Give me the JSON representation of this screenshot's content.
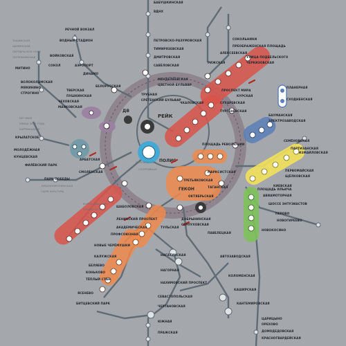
{
  "colors": {
    "background": "#a4a7ab",
    "line": "#5f6b75",
    "ring_fill": "#8c7f89",
    "ring_stroke": "#6e5e6a",
    "zone_red": "#d9544a",
    "zone_orange": "#ef8a4c",
    "zone_blue": "#5b7fb9",
    "zone_purple": "#9b7fa3",
    "zone_yellow": "#f2e15b",
    "zone_green": "#7ec25a",
    "zone_cyan": "#3fa9d6",
    "zone_teal": "#6f9aa6"
  },
  "zones": {
    "center": "ПОЛИС",
    "dv": "ДВ",
    "reyk": "РЕЙК",
    "gekon": "ГЕКОН"
  },
  "stations": [
    "БАБУШКИНСКАЯ",
    "ВДНХ",
    "АЛЕКСЕЕВСКАЯ",
    "РИЖСКАЯ",
    "ПРОСПЕКТ МИРА",
    "СУХАРЕВСКАЯ",
    "ТУРГЕНЕВСКАЯ",
    "КИТАЙ-ГОРОД",
    "ТРЕТЬЯКОВСКАЯ",
    "ОКТЯБРЬСКАЯ",
    "ШАБОЛОВСКАЯ",
    "ЛЕНИНСКИЙ ПРОСПЕКТ",
    "АКАДЕМИЧЕСКАЯ",
    "ПРОФСОЮЗНАЯ",
    "НОВЫЕ ЧЕРЁМУШКИ",
    "КАЛУЖСКАЯ",
    "БЕЛЯЕВО",
    "КОНЬКОВО",
    "ТЁПЛЫЙ СТАН",
    "ЯСЕНЕВО",
    "БИТЦЕВСКИЙ ПАРК",
    "ПЛОЩАДЬ РЕВОЛЮЦИИ",
    "КУРСКАЯ",
    "БАУМАНСКАЯ",
    "ЭЛЕКТРОЗАВОДСКАЯ",
    "СЕМЁНОВСКАЯ",
    "ПАРТИЗАНСКАЯ",
    "ИЗМАЙЛОВСКАЯ",
    "ПЕРВОМАЙСКАЯ",
    "ЩЁЛКОВСКАЯ",
    "КИЕВСКАЯ",
    "СМОЛЕНСКАЯ",
    "АРБАТСКАЯ",
    "ПАРК ПОБЕДЫ",
    "ФИЛЁВСКИЙ ПАРК",
    "КУНЦЕВСКАЯ",
    "МОЛОДЁЖНАЯ",
    "КРЫЛАТСКОЕ",
    "СТРОГИНО",
    "МЯКИНИНО",
    "ВОЛОКОЛАМСКАЯ",
    "МИТИНО",
    "ТВЕРСКАЯ",
    "ПУШКИНСКАЯ",
    "ЧЕХОВСКАЯ",
    "МАЯКОВСКАЯ",
    "БЕЛОРУССКАЯ",
    "ДИНАМО",
    "АЭРОПОРТ",
    "СОКОЛ",
    "ВОЙКОВСКАЯ",
    "ВОДНЫЙ СТАДИОН",
    "РЕЧНОЙ ВОКЗАЛ",
    "ТАГАНСКАЯ",
    "МАРКСИСТСКАЯ",
    "ПЛОЩАДЬ ИЛЬИЧА",
    "АВИАМОТОРНАЯ",
    "ШОССЕ ЭНТУЗИАСТОВ",
    "ПЕРОВО",
    "НОВОГИРЕЕВО",
    "НОВОКОСИНО",
    "ПАВЕЛЕЦКАЯ",
    "АВТОЗАВОДСКАЯ",
    "КОЛОМЕНСКАЯ",
    "КАШИРСКАЯ",
    "КАНТЕМИРОВСКАЯ",
    "ЦАРИЦЫНО",
    "ОРЕХОВО",
    "ДОМОДЕДОВСКАЯ",
    "КРАСНОГВАРДЕЙСКАЯ",
    "ДОБРЫНИНСКАЯ",
    "СЕРПУХОВСКАЯ",
    "ТУЛЬСКАЯ",
    "НАГАТИНСКАЯ",
    "НАГОРНАЯ",
    "НАХИМОВСКИЙ ПРОСПЕКТ",
    "СЕВАСТОПОЛЬСКАЯ",
    "ЧЕРТАНОВСКАЯ",
    "ЮЖНАЯ",
    "ПРАЖСКАЯ",
    "ВЫХИНО",
    "РЯЗАНСКИЙ ПРОСПЕКТ",
    "КУЗЬМИНКИ",
    "ТЕКСТИЛЬЩИКИ",
    "ВОЛГОГРАДСКИЙ ПРОСПЕКТ",
    "ПРОЛЕТАРСКАЯ",
    "КРЕСТЬЯНСКАЯ ЗАСТАВА",
    "ДУБРОВКА",
    "КОЖУХОВСКАЯ",
    "ПЕЧАТНИКИ",
    "ВОЛЖСКАЯ",
    "ЛЮБЛИНО",
    "БРАТИСЛАВСКАЯ",
    "МАРЬИНО",
    "ОТРАДНОЕ",
    "ВЛАДЫКИНО",
    "ПЕТРОВСКО-РАЗУМОВСКАЯ",
    "ТИМИРЯЗЕВСКАЯ",
    "ДМИТРОВСКАЯ",
    "САВЁЛОВСКАЯ",
    "МЕНДЕЛЕЕВСКАЯ",
    "ЦВЕТНОЙ БУЛЬВАР",
    "ТРУБНАЯ",
    "СРЕТЕНСКИЙ БУЛЬВАР",
    "ЧКАЛОВСКАЯ",
    "РИМСКАЯ",
    "КРАСНОСЕЛЬСКАЯ",
    "КОМСОМОЛЬСКАЯ",
    "СОКОЛЬНИКИ",
    "ПРЕОБРАЖЕНСКАЯ ПЛОЩАДЬ",
    "УЛИЦА ПОДБЕЛЬСКОГО",
    "ЧЕРКИЗОВСКАЯ",
    "ПЛАНЕРНАЯ",
    "СХОДНЕНСКАЯ",
    "ТУШИНСКАЯ",
    "ЩУКИНСКАЯ",
    "ОКТЯБРЬСКОЕ ПОЛЕ",
    "ПОЛЕЖАЕВСКАЯ",
    "БЕГОВАЯ",
    "УЛИЦА 1905 ГОДА",
    "БАРРИКАДНАЯ",
    "КРАСНОПРЕСНЕНСКАЯ",
    "ПАРК КУЛЬТУРЫ",
    "ФРУНЗЕНСКАЯ",
    "СПОРТИВНАЯ",
    "ВОРОБЬЁВЫ ГОРЫ",
    "УНИВЕРСИТЕТ",
    "ПРОСПЕКТ ВЕРНАДСКОГО",
    "ЮГО-ЗАПАДНАЯ"
  ],
  "legend_note": ""
}
